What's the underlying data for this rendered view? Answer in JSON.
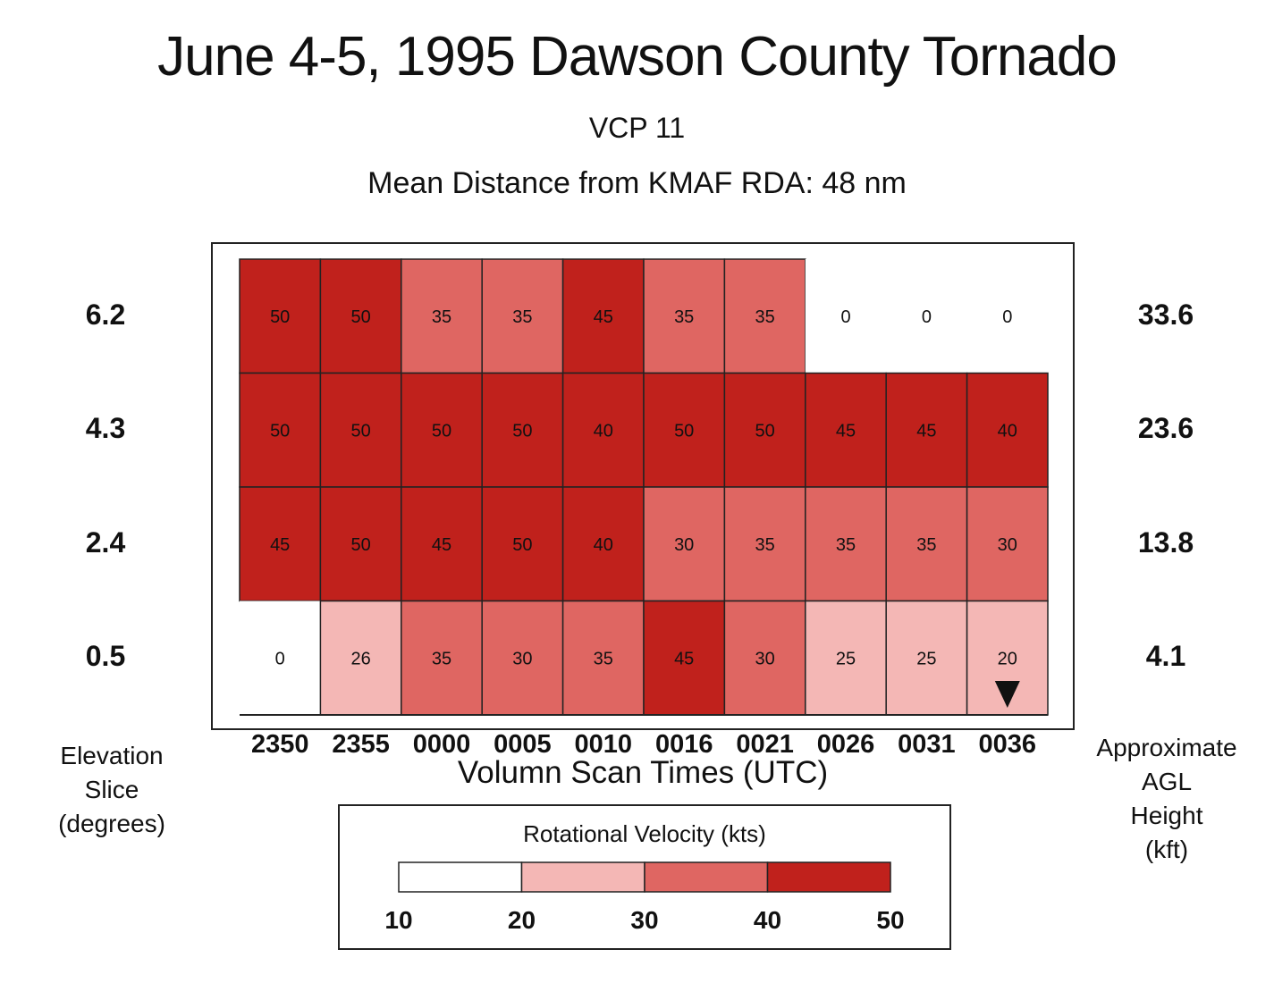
{
  "title": "June 4-5, 1995 Dawson County Tornado",
  "subtitle_vcp": "VCP 11",
  "subtitle_distance": "Mean Distance from KMAF RDA:  48 nm",
  "left_axis_title": [
    "Elevation",
    "Slice",
    "(degrees)"
  ],
  "right_axis_title": [
    "Approximate",
    "AGL",
    "Height",
    "(kft)"
  ],
  "x_axis_title": "Volumn Scan Times (UTC)",
  "legend": {
    "title": "Rotational Velocity (kts)",
    "ticks": [
      "10",
      "20",
      "30",
      "40",
      "50"
    ],
    "colors": [
      "#ffffff",
      "#f4b7b5",
      "#df6662",
      "#c0211c"
    ]
  },
  "colors": {
    "level_lt20": "#ffffff",
    "level_20_30": "#f4b7b5",
    "level_30_40": "#df6662",
    "level_40_50": "#c0211c",
    "grid_line": "#222222"
  },
  "chart_data": {
    "type": "heatmap",
    "x_labels": [
      "2350",
      "2355",
      "0000",
      "0005",
      "0010",
      "0016",
      "0021",
      "0026",
      "0031",
      "0036"
    ],
    "row_labels": [
      "6.2",
      "4.3",
      "2.4",
      "0.5"
    ],
    "row_heights_kft": [
      "33.6",
      "23.6",
      "13.8",
      "4.1"
    ],
    "values": [
      [
        50,
        50,
        35,
        35,
        45,
        35,
        35,
        0,
        0,
        0
      ],
      [
        50,
        50,
        50,
        50,
        40,
        50,
        50,
        45,
        45,
        40
      ],
      [
        45,
        50,
        45,
        50,
        40,
        30,
        35,
        35,
        35,
        30
      ],
      [
        0,
        26,
        35,
        30,
        35,
        45,
        30,
        25,
        25,
        20
      ]
    ],
    "value_labels": [
      [
        "50",
        "50",
        "35",
        "35",
        "45",
        "35",
        "35",
        "0",
        "0",
        "0"
      ],
      [
        "50",
        "50",
        "50",
        "50",
        "40",
        "50",
        "50",
        "45",
        "45",
        "40"
      ],
      [
        "45",
        "50",
        "45",
        "50",
        "40",
        "30",
        "35",
        "35",
        "35",
        "30"
      ],
      [
        "0",
        "26",
        "35",
        "30",
        "35",
        "45",
        "30",
        "25",
        "25",
        "20"
      ]
    ],
    "color_bins": [
      10,
      20,
      30,
      40,
      50
    ],
    "marker": {
      "symbol": "down-triangle",
      "row": 3,
      "col": 9
    }
  }
}
